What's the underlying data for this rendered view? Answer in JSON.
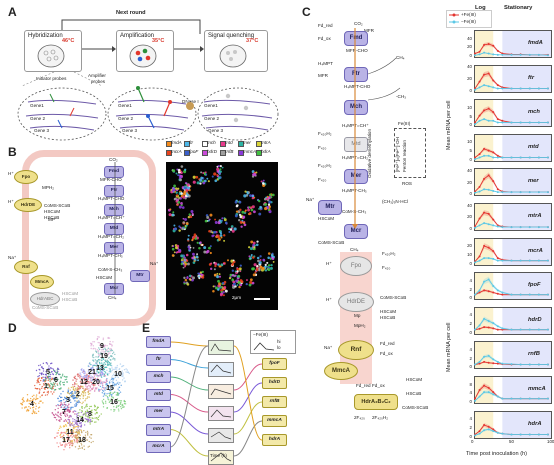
{
  "panels": {
    "a": "A",
    "b": "B",
    "c": "C",
    "d": "D",
    "e": "E"
  },
  "panelA": {
    "next_round": "Next round",
    "stages": [
      {
        "title": "Hybridization",
        "temp": "46°C"
      },
      {
        "title": "Amplification",
        "temp": "35°C"
      },
      {
        "title": "Signal quenching",
        "temp": "37°C"
      }
    ],
    "initiator_probes": "Initiator probes",
    "amplifier_probes": "Amplifier\nprobes",
    "amplifier_l1": "Amplifier",
    "amplifier_l2": "probes",
    "dnase": "DNase I",
    "genes": [
      "Gene1",
      "Gene 2",
      "Gene 3"
    ]
  },
  "panelB": {
    "enzymes": [
      "Fmd",
      "Ftr",
      "Mch",
      "Mtd",
      "Mer",
      "Mcr",
      "Mtr",
      "Fpo",
      "HdrDE",
      "Rnf",
      "MmcA",
      "HdrABC"
    ],
    "metabolites": [
      "CO₂",
      "MFR-CHO",
      "H₄MPT-CHO",
      "H₄MPT=CH⁺",
      "H₄MPT=CH₂",
      "H₄MPT-CH₃",
      "CoM-S-CH₃",
      "HSCoM",
      "CoMS-SCoB",
      "CH₄",
      "HSCoB",
      "Na⁺",
      "H⁺",
      "MPH₂",
      "MP",
      "CoMS-SCoB HSCoM HSCoB"
    ],
    "scale": "2μm",
    "legend": [
      {
        "gene": "fmdA",
        "color": "#f28a1c"
      },
      {
        "gene": "ftr",
        "color": "#4db7e8"
      },
      {
        "gene": "mch",
        "color": "#ffffff"
      },
      {
        "gene": "mtd",
        "color": "#e83a8c"
      },
      {
        "gene": "mer",
        "color": "#2bb3a3"
      },
      {
        "gene": "mtrA",
        "color": "#d8d43a"
      },
      {
        "gene": "mcrA",
        "color": "#e8421c"
      },
      {
        "gene": "fpoF",
        "color": "#3a5ec9"
      },
      {
        "gene": "hdrD",
        "color": "#c94ad8"
      },
      {
        "gene": "rnfB",
        "color": "#a0a0a0"
      },
      {
        "gene": "mmcA",
        "color": "#8a3ad8"
      },
      {
        "gene": "hdrA",
        "color": "#40c040"
      }
    ]
  },
  "panelC": {
    "legend": {
      "plus": "+Fe(III)",
      "minus": "−Fe(III)",
      "plus_color": "#e3342f",
      "minus_color": "#5bc8e6"
    },
    "phases": {
      "log": "Log",
      "stationary": "Stationary"
    },
    "ylabel": "Mean mRNA per cell",
    "xlabel": "Time post inoculation (h)",
    "xticks": [
      "0",
      "50",
      "100"
    ],
    "side_labels": {
      "oxidative": "Oxidative demethylation",
      "fenton": "Fenton reaction",
      "ros": "ROS",
      "fe": "Fe(III)",
      "fe_ox": "[Fe³⁺]=[Fe²⁺]·OH"
    },
    "pathway": [
      "CO₂",
      "MFR",
      "Fd_red",
      "Fd_ox",
      "MFR-CHO",
      "H₄MPT",
      "H₄MPT-CHO",
      "H₄MPT=CH⁺",
      "F₄₂₀H₂",
      "F₄₂₀",
      "H₄MPT=CH₂",
      "H₄MPT-CH₃",
      "CoM-S-CH₃",
      "(CH₃)₃N·HCl",
      "CH₄",
      "-CH₃",
      "HSCoM",
      "CoMS-SCoB",
      "HSCoB",
      "Na⁺",
      "H⁺",
      "Mp",
      "MpH₂",
      "2F₄₂₀",
      "2F₄₂₀H₂",
      "HdrA₂B₂C₂"
    ],
    "enzymes": [
      "Fmd",
      "Ftr",
      "Mch",
      "Mtd",
      "Mer",
      "Mtr",
      "Mcr",
      "Fpo",
      "HdrDE",
      "Rnf",
      "MmcA"
    ]
  },
  "panelD": {
    "clusters": [
      "1",
      "2",
      "3",
      "4",
      "5",
      "6",
      "7",
      "8",
      "9",
      "10",
      "11",
      "12",
      "13",
      "14",
      "15",
      "16",
      "17",
      "18",
      "19",
      "20",
      "21"
    ]
  },
  "panelE": {
    "left_genes": [
      "fmdA",
      "ftr",
      "mch",
      "mtd",
      "mer",
      "mtrA",
      "mcrA"
    ],
    "right_genes": [
      "fpoF",
      "hdrD",
      "rnfB",
      "mmcA",
      "hdrA"
    ],
    "legend_title": "−Fe(III)",
    "legend_hi": "hi",
    "legend_lo": "lo",
    "xaxis": "Time (h)",
    "ticks": [
      "0",
      "50",
      "100"
    ]
  },
  "chart_data": [
    {
      "type": "line",
      "title": "",
      "xlabel": "Time post inoculation (h)",
      "ylabel": "Mean mRNA per cell",
      "x": [
        0,
        6,
        12,
        18,
        24,
        30,
        36,
        48,
        60,
        72,
        84,
        96
      ],
      "xlim": [
        0,
        100
      ],
      "panels": [
        {
          "gene": "fmdA",
          "ymax": 60,
          "yticks": [
            0,
            20,
            40
          ],
          "series": [
            {
              "name": "+Fe(III)",
              "values": [
                8,
                12,
                28,
                30,
                26,
                14,
                8,
                6,
                6,
                5,
                5,
                5
              ]
            },
            {
              "name": "−Fe(III)",
              "values": [
                4,
                6,
                10,
                8,
                6,
                5,
                5,
                5,
                5,
                5,
                5,
                4
              ]
            }
          ]
        },
        {
          "gene": "ftr",
          "ymax": 45,
          "yticks": [
            0,
            20,
            40
          ],
          "series": [
            {
              "name": "+Fe(III)",
              "values": [
                6,
                18,
                30,
                32,
                20,
                12,
                8,
                6,
                6,
                6,
                6,
                6
              ]
            },
            {
              "name": "−Fe(III)",
              "values": [
                4,
                8,
                12,
                10,
                8,
                6,
                6,
                6,
                6,
                6,
                6,
                6
              ]
            }
          ]
        },
        {
          "gene": "mch",
          "ymax": 15,
          "yticks": [
            0,
            5,
            10
          ],
          "series": [
            {
              "name": "+Fe(III)",
              "values": [
                2,
                6,
                9,
                10,
                8,
                4,
                3,
                2,
                2,
                2,
                2,
                2
              ]
            },
            {
              "name": "−Fe(III)",
              "values": [
                1,
                3,
                4,
                3,
                3,
                2,
                2,
                2,
                2,
                2,
                2,
                2
              ]
            }
          ]
        },
        {
          "gene": "mtd",
          "ymax": 15,
          "yticks": [
            0,
            5,
            10
          ],
          "series": [
            {
              "name": "+Fe(III)",
              "values": [
                2,
                4,
                7,
                6,
                5,
                3,
                2,
                2,
                2,
                2,
                2,
                2
              ]
            },
            {
              "name": "−Fe(III)",
              "values": [
                1,
                2,
                3,
                3,
                2,
                2,
                2,
                2,
                2,
                2,
                2,
                2
              ]
            }
          ]
        },
        {
          "gene": "mer",
          "ymax": 45,
          "yticks": [
            0,
            20,
            40
          ],
          "series": [
            {
              "name": "+Fe(III)",
              "values": [
                6,
                14,
                28,
                34,
                24,
                10,
                6,
                5,
                5,
                5,
                5,
                5
              ]
            },
            {
              "name": "−Fe(III)",
              "values": [
                4,
                6,
                10,
                9,
                7,
                5,
                5,
                5,
                5,
                5,
                5,
                5
              ]
            }
          ]
        },
        {
          "gene": "mtrA",
          "ymax": 45,
          "yticks": [
            0,
            20,
            40
          ],
          "series": [
            {
              "name": "+Fe(III)",
              "values": [
                6,
                20,
                30,
                28,
                18,
                8,
                6,
                5,
                5,
                5,
                5,
                5
              ]
            },
            {
              "name": "−Fe(III)",
              "values": [
                4,
                8,
                12,
                10,
                8,
                6,
                5,
                5,
                5,
                5,
                5,
                5
              ]
            }
          ]
        },
        {
          "gene": "mcrA",
          "ymax": 30,
          "yticks": [
            0,
            10,
            20
          ],
          "series": [
            {
              "name": "+Fe(III)",
              "values": [
                4,
                10,
                22,
                20,
                16,
                8,
                6,
                5,
                5,
                5,
                5,
                5
              ]
            },
            {
              "name": "−Fe(III)",
              "values": [
                3,
                5,
                8,
                8,
                7,
                5,
                5,
                5,
                5,
                5,
                5,
                5
              ]
            }
          ]
        },
        {
          "gene": "fpoF",
          "ymax": 6,
          "yticks": [
            0,
            2,
            4
          ],
          "series": [
            {
              "name": "+Fe(III)",
              "values": [
                1,
                1.5,
                2,
                1.8,
                1.5,
                1.2,
                1,
                1,
                1,
                1,
                1,
                1
              ]
            },
            {
              "name": "−Fe(III)",
              "values": [
                1,
                2,
                4,
                4.5,
                3,
                2,
                1.5,
                1,
                1,
                1,
                1,
                1
              ]
            }
          ]
        },
        {
          "gene": "hdrD",
          "ymax": 6,
          "yticks": [
            0,
            2,
            4
          ],
          "series": [
            {
              "name": "+Fe(III)",
              "values": [
                1,
                1.2,
                1.6,
                1.5,
                1.3,
                1,
                1,
                1,
                1,
                1,
                1,
                1
              ]
            },
            {
              "name": "−Fe(III)",
              "values": [
                1,
                2,
                3.5,
                3,
                2.5,
                1.8,
                1.3,
                1,
                1,
                1,
                1,
                1
              ]
            }
          ]
        },
        {
          "gene": "rnfB",
          "ymax": 6,
          "yticks": [
            0,
            2,
            4
          ],
          "series": [
            {
              "name": "+Fe(III)",
              "values": [
                0.8,
                1,
                1.4,
                1.2,
                1.1,
                1,
                0.9,
                0.8,
                0.8,
                0.8,
                0.8,
                0.8
              ]
            },
            {
              "name": "−Fe(III)",
              "values": [
                0.8,
                1.4,
                2.6,
                2.8,
                2,
                1.4,
                1,
                0.9,
                0.8,
                0.8,
                0.8,
                0.8
              ]
            }
          ]
        },
        {
          "gene": "mmcA",
          "ymax": 12,
          "yticks": [
            0,
            4,
            8
          ],
          "series": [
            {
              "name": "+Fe(III)",
              "values": [
                2,
                6,
                8,
                7,
                5,
                3,
                2,
                2,
                2,
                2,
                2,
                2
              ]
            },
            {
              "name": "−Fe(III)",
              "values": [
                1,
                3,
                5,
                5,
                4,
                3,
                2,
                2,
                2,
                2,
                2,
                2
              ]
            }
          ]
        },
        {
          "gene": "hdrA",
          "ymax": 6,
          "yticks": [
            0,
            2,
            4
          ],
          "series": [
            {
              "name": "+Fe(III)",
              "values": [
                0.8,
                1.6,
                3,
                2.6,
                2,
                1.2,
                1,
                0.8,
                0.8,
                0.8,
                0.8,
                0.8
              ]
            },
            {
              "name": "−Fe(III)",
              "values": [
                0.6,
                1,
                1.8,
                2,
                1.6,
                1.2,
                1,
                0.8,
                0.8,
                0.8,
                0.8,
                0.8
              ]
            }
          ]
        }
      ]
    }
  ]
}
